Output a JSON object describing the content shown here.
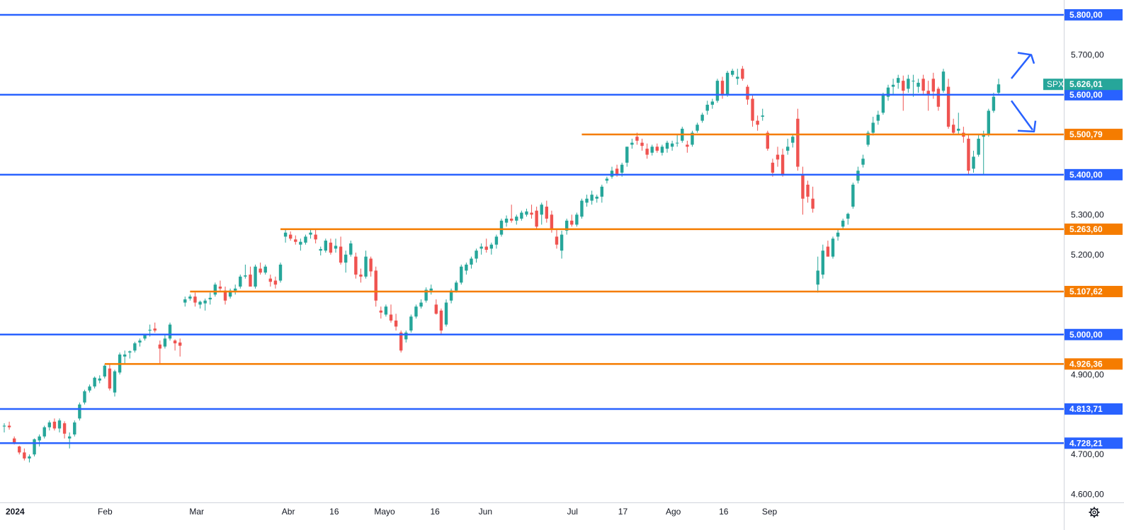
{
  "chart_data": {
    "type": "candlestick",
    "symbol": "SPX",
    "last_price": 5626.01,
    "last_price_label": "5.626,01",
    "ylim": [
      4580,
      5830
    ],
    "y_ticks": [
      {
        "value": 4600,
        "label": "4.600,00"
      },
      {
        "value": 4700,
        "label": "4.700,00"
      },
      {
        "value": 4800,
        "label": "4.800,00"
      },
      {
        "value": 4900,
        "label": "4.900,00"
      },
      {
        "value": 5000,
        "label": "5.000,00"
      },
      {
        "value": 5100,
        "label": "5.100,00"
      },
      {
        "value": 5200,
        "label": "5.200,00"
      },
      {
        "value": 5300,
        "label": "5.300,00"
      },
      {
        "value": 5400,
        "label": "5.400,00"
      },
      {
        "value": 5500,
        "label": "5.500,00"
      },
      {
        "value": 5600,
        "label": "5.600,00"
      },
      {
        "value": 5700,
        "label": "5.700,00"
      },
      {
        "value": 5800,
        "label": "5.800,00"
      }
    ],
    "x_ticks": [
      {
        "label": "2024",
        "index": 0,
        "bold": true
      },
      {
        "label": "Feb",
        "index": 22
      },
      {
        "label": "Mar",
        "index": 42
      },
      {
        "label": "Abr",
        "index": 62
      },
      {
        "label": "16",
        "index": 72
      },
      {
        "label": "Mayo",
        "index": 83
      },
      {
        "label": "16",
        "index": 94
      },
      {
        "label": "Jun",
        "index": 105
      },
      {
        "label": "Jul",
        "index": 124
      },
      {
        "label": "17",
        "index": 135
      },
      {
        "label": "Ago",
        "index": 146
      },
      {
        "label": "16",
        "index": 157
      },
      {
        "label": "Sep",
        "index": 167
      }
    ],
    "horizontal_levels": [
      {
        "value": 5800.0,
        "label": "5.800,00",
        "color": "#2962ff",
        "start_index": 0
      },
      {
        "value": 5600.0,
        "label": "5.600,00",
        "color": "#2962ff",
        "start_index": 0
      },
      {
        "value": 5500.79,
        "label": "5.500,79",
        "color": "#f57c00",
        "start_index": 115
      },
      {
        "value": 5400.0,
        "label": "5.400,00",
        "color": "#2962ff",
        "start_index": 0
      },
      {
        "value": 5263.6,
        "label": "5.263,60",
        "color": "#f57c00",
        "start_index": 55
      },
      {
        "value": 5107.62,
        "label": "5.107,62",
        "color": "#f57c00",
        "start_index": 37
      },
      {
        "value": 5000.0,
        "label": "5.000,00",
        "color": "#2962ff",
        "start_index": 0
      },
      {
        "value": 4926.36,
        "label": "4.926,36",
        "color": "#f57c00",
        "start_index": 20
      },
      {
        "value": 4813.71,
        "label": "4.813,71",
        "color": "#2962ff",
        "start_index": 0
      },
      {
        "value": 4728.21,
        "label": "4.728,21",
        "color": "#2962ff",
        "start_index": 0
      }
    ],
    "candles": [
      [
        4770,
        4778,
        4755,
        4772
      ],
      [
        4772,
        4782,
        4762,
        4768
      ],
      [
        4740,
        4745,
        4725,
        4730
      ],
      [
        4720,
        4722,
        4700,
        4705
      ],
      [
        4705,
        4715,
        4685,
        4690
      ],
      [
        4690,
        4700,
        4680,
        4695
      ],
      [
        4700,
        4740,
        4695,
        4738
      ],
      [
        4735,
        4750,
        4720,
        4745
      ],
      [
        4745,
        4772,
        4740,
        4768
      ],
      [
        4768,
        4785,
        4760,
        4780
      ],
      [
        4782,
        4790,
        4760,
        4765
      ],
      [
        4765,
        4790,
        4755,
        4785
      ],
      [
        4778,
        4783,
        4740,
        4752
      ],
      [
        4740,
        4755,
        4715,
        4745
      ],
      [
        4750,
        4785,
        4745,
        4780
      ],
      [
        4790,
        4830,
        4785,
        4825
      ],
      [
        4830,
        4862,
        4825,
        4858
      ],
      [
        4860,
        4875,
        4855,
        4870
      ],
      [
        4870,
        4895,
        4865,
        4892
      ],
      [
        4885,
        4898,
        4878,
        4890
      ],
      [
        4895,
        4925,
        4890,
        4922
      ],
      [
        4915,
        4925,
        4860,
        4865
      ],
      [
        4855,
        4912,
        4845,
        4908
      ],
      [
        4905,
        4955,
        4900,
        4950
      ],
      [
        4945,
        4960,
        4925,
        4950
      ],
      [
        4955,
        4960,
        4940,
        4958
      ],
      [
        4960,
        4982,
        4955,
        4978
      ],
      [
        4980,
        4990,
        4970,
        4985
      ],
      [
        4990,
        5000,
        4985,
        4998
      ],
      [
        5010,
        5025,
        4995,
        5012
      ],
      [
        5015,
        5030,
        5005,
        5010
      ],
      [
        4975,
        4985,
        4925,
        4965
      ],
      [
        4970,
        5000,
        4965,
        4990
      ],
      [
        4990,
        5030,
        4985,
        5025
      ],
      [
        4985,
        4988,
        4960,
        4978
      ],
      [
        4980,
        4990,
        4945,
        4972
      ],
      [
        5080,
        5095,
        5070,
        5088
      ],
      [
        5090,
        5100,
        5085,
        5095
      ],
      [
        5095,
        5105,
        5070,
        5080
      ],
      [
        5075,
        5085,
        5065,
        5082
      ],
      [
        5078,
        5090,
        5060,
        5085
      ],
      [
        5088,
        5105,
        5075,
        5092
      ],
      [
        5100,
        5130,
        5095,
        5125
      ],
      [
        5120,
        5135,
        5110,
        5115
      ],
      [
        5110,
        5120,
        5075,
        5085
      ],
      [
        5095,
        5115,
        5090,
        5110
      ],
      [
        5110,
        5125,
        5100,
        5115
      ],
      [
        5120,
        5150,
        5115,
        5145
      ],
      [
        5145,
        5175,
        5140,
        5148
      ],
      [
        5150,
        5170,
        5130,
        5120
      ],
      [
        5120,
        5175,
        5115,
        5170
      ],
      [
        5165,
        5180,
        5150,
        5155
      ],
      [
        5155,
        5175,
        5150,
        5170
      ],
      [
        5140,
        5150,
        5120,
        5132
      ],
      [
        5135,
        5145,
        5115,
        5125
      ],
      [
        5135,
        5180,
        5130,
        5175
      ],
      [
        5245,
        5262,
        5230,
        5255
      ],
      [
        5250,
        5258,
        5235,
        5240
      ],
      [
        5238,
        5248,
        5225,
        5232
      ],
      [
        5225,
        5240,
        5210,
        5232
      ],
      [
        5230,
        5250,
        5225,
        5245
      ],
      [
        5250,
        5265,
        5240,
        5255
      ],
      [
        5250,
        5262,
        5228,
        5238
      ],
      [
        5210,
        5220,
        5198,
        5214
      ],
      [
        5210,
        5240,
        5205,
        5235
      ],
      [
        5230,
        5240,
        5200,
        5205
      ],
      [
        5215,
        5240,
        5205,
        5222
      ],
      [
        5220,
        5245,
        5175,
        5180
      ],
      [
        5180,
        5210,
        5155,
        5200
      ],
      [
        5200,
        5235,
        5195,
        5228
      ],
      [
        5195,
        5205,
        5140,
        5150
      ],
      [
        5150,
        5165,
        5130,
        5145
      ],
      [
        5145,
        5210,
        5140,
        5195
      ],
      [
        5190,
        5195,
        5145,
        5158
      ],
      [
        5160,
        5170,
        5070,
        5085
      ],
      [
        5060,
        5070,
        5040,
        5055
      ],
      [
        5050,
        5075,
        5045,
        5070
      ],
      [
        5050,
        5075,
        5030,
        5035
      ],
      [
        5035,
        5052,
        5010,
        5020
      ],
      [
        5005,
        5010,
        4955,
        4960
      ],
      [
        4988,
        5010,
        4980,
        5005
      ],
      [
        5010,
        5050,
        5005,
        5045
      ],
      [
        5045,
        5075,
        5040,
        5070
      ],
      [
        5070,
        5088,
        5065,
        5080
      ],
      [
        5085,
        5118,
        5080,
        5112
      ],
      [
        5110,
        5125,
        5100,
        5115
      ],
      [
        5075,
        5088,
        5050,
        5052
      ],
      [
        5060,
        5065,
        5000,
        5010
      ],
      [
        5025,
        5088,
        5020,
        5080
      ],
      [
        5085,
        5115,
        5078,
        5110
      ],
      [
        5110,
        5135,
        5105,
        5130
      ],
      [
        5130,
        5175,
        5125,
        5170
      ],
      [
        5160,
        5180,
        5150,
        5175
      ],
      [
        5175,
        5195,
        5165,
        5190
      ],
      [
        5190,
        5215,
        5180,
        5210
      ],
      [
        5215,
        5228,
        5200,
        5220
      ],
      [
        5220,
        5240,
        5205,
        5212
      ],
      [
        5215,
        5230,
        5200,
        5225
      ],
      [
        5225,
        5250,
        5215,
        5245
      ],
      [
        5250,
        5290,
        5245,
        5285
      ],
      [
        5280,
        5298,
        5270,
        5290
      ],
      [
        5290,
        5325,
        5280,
        5285
      ],
      [
        5285,
        5300,
        5275,
        5295
      ],
      [
        5290,
        5310,
        5285,
        5305
      ],
      [
        5300,
        5315,
        5295,
        5308
      ],
      [
        5305,
        5325,
        5290,
        5300
      ],
      [
        5310,
        5320,
        5265,
        5270
      ],
      [
        5300,
        5330,
        5275,
        5325
      ],
      [
        5320,
        5335,
        5280,
        5290
      ],
      [
        5300,
        5310,
        5255,
        5262
      ],
      [
        5245,
        5265,
        5215,
        5225
      ],
      [
        5210,
        5260,
        5190,
        5250
      ],
      [
        5260,
        5290,
        5250,
        5285
      ],
      [
        5285,
        5300,
        5270,
        5275
      ],
      [
        5275,
        5305,
        5270,
        5300
      ],
      [
        5295,
        5340,
        5290,
        5335
      ],
      [
        5330,
        5350,
        5320,
        5340
      ],
      [
        5335,
        5360,
        5325,
        5350
      ],
      [
        5340,
        5350,
        5330,
        5345
      ],
      [
        5345,
        5375,
        5330,
        5370
      ],
      [
        5385,
        5395,
        5378,
        5390
      ],
      [
        5395,
        5420,
        5390,
        5410
      ],
      [
        5415,
        5425,
        5395,
        5402
      ],
      [
        5405,
        5430,
        5395,
        5425
      ],
      [
        5430,
        5470,
        5420,
        5470
      ],
      [
        5475,
        5490,
        5465,
        5480
      ],
      [
        5495,
        5505,
        5475,
        5485
      ],
      [
        5480,
        5490,
        5460,
        5472
      ],
      [
        5465,
        5478,
        5440,
        5450
      ],
      [
        5455,
        5475,
        5448,
        5470
      ],
      [
        5470,
        5478,
        5455,
        5460
      ],
      [
        5455,
        5475,
        5448,
        5470
      ],
      [
        5465,
        5485,
        5455,
        5480
      ],
      [
        5470,
        5485,
        5460,
        5478
      ],
      [
        5480,
        5500,
        5470,
        5480
      ],
      [
        5485,
        5520,
        5480,
        5515
      ],
      [
        5475,
        5485,
        5455,
        5470
      ],
      [
        5475,
        5510,
        5470,
        5505
      ],
      [
        5510,
        5530,
        5505,
        5525
      ],
      [
        5535,
        5555,
        5530,
        5550
      ],
      [
        5560,
        5585,
        5550,
        5575
      ],
      [
        5575,
        5590,
        5565,
        5583
      ],
      [
        5585,
        5640,
        5580,
        5635
      ],
      [
        5635,
        5645,
        5590,
        5600
      ],
      [
        5600,
        5660,
        5595,
        5655
      ],
      [
        5650,
        5665,
        5645,
        5660
      ],
      [
        5640,
        5665,
        5625,
        5645
      ],
      [
        5665,
        5672,
        5635,
        5640
      ],
      [
        5620,
        5625,
        5575,
        5588
      ],
      [
        5590,
        5598,
        5520,
        5535
      ]
    ],
    "candles_extra": [
      [
        5535,
        5548,
        5510,
        5525
      ],
      [
        5545,
        5565,
        5535,
        5548
      ],
      [
        5505,
        5510,
        5460,
        5465
      ],
      [
        5430,
        5440,
        5395,
        5405
      ],
      [
        5450,
        5470,
        5420,
        5438
      ],
      [
        5450,
        5465,
        5395,
        5400
      ],
      [
        5460,
        5490,
        5450,
        5470
      ],
      [
        5480,
        5500,
        5468,
        5495
      ],
      [
        5540,
        5565,
        5410,
        5420
      ],
      [
        5400,
        5420,
        5300,
        5340
      ],
      [
        5375,
        5385,
        5330,
        5345
      ],
      [
        5340,
        5370,
        5305,
        5315
      ],
      [
        5125,
        5195,
        5105,
        5160
      ],
      [
        5150,
        5225,
        5140,
        5210
      ],
      [
        5220,
        5235,
        5195,
        5195
      ],
      [
        5195,
        5245,
        5190,
        5240
      ],
      [
        5245,
        5265,
        5235,
        5255
      ],
      [
        5270,
        5290,
        5265,
        5285
      ],
      [
        5290,
        5305,
        5275,
        5302
      ],
      [
        5320,
        5380,
        5315,
        5375
      ],
      [
        5385,
        5420,
        5378,
        5410
      ],
      [
        5425,
        5450,
        5418,
        5440
      ],
      [
        5475,
        5510,
        5470,
        5505
      ],
      [
        5505,
        5545,
        5498,
        5530
      ],
      [
        5535,
        5560,
        5525,
        5550
      ],
      [
        5555,
        5605,
        5550,
        5600
      ],
      [
        5595,
        5625,
        5585,
        5618
      ],
      [
        5620,
        5640,
        5600,
        5625
      ],
      [
        5630,
        5650,
        5615,
        5642
      ],
      [
        5635,
        5648,
        5560,
        5610
      ],
      [
        5615,
        5650,
        5605,
        5640
      ],
      [
        5635,
        5650,
        5595,
        5635
      ],
      [
        5620,
        5640,
        5605,
        5630
      ],
      [
        5640,
        5650,
        5600,
        5610
      ],
      [
        5610,
        5635,
        5560,
        5598
      ],
      [
        5640,
        5655,
        5590,
        5608
      ],
      [
        5615,
        5620,
        5560,
        5570
      ],
      [
        5610,
        5665,
        5605,
        5658
      ],
      [
        5620,
        5640,
        5515,
        5520
      ],
      [
        5525,
        5540,
        5500,
        5505
      ],
      [
        5510,
        5555,
        5500,
        5515
      ],
      [
        5505,
        5520,
        5480,
        5495
      ],
      [
        5490,
        5500,
        5400,
        5410
      ],
      [
        5415,
        5460,
        5405,
        5445
      ],
      [
        5450,
        5500,
        5445,
        5490
      ],
      [
        5495,
        5510,
        5400,
        5500
      ],
      [
        5500,
        5565,
        5495,
        5560
      ],
      [
        5560,
        5605,
        5555,
        5595
      ],
      [
        5605,
        5640,
        5600,
        5626
      ]
    ]
  }
}
